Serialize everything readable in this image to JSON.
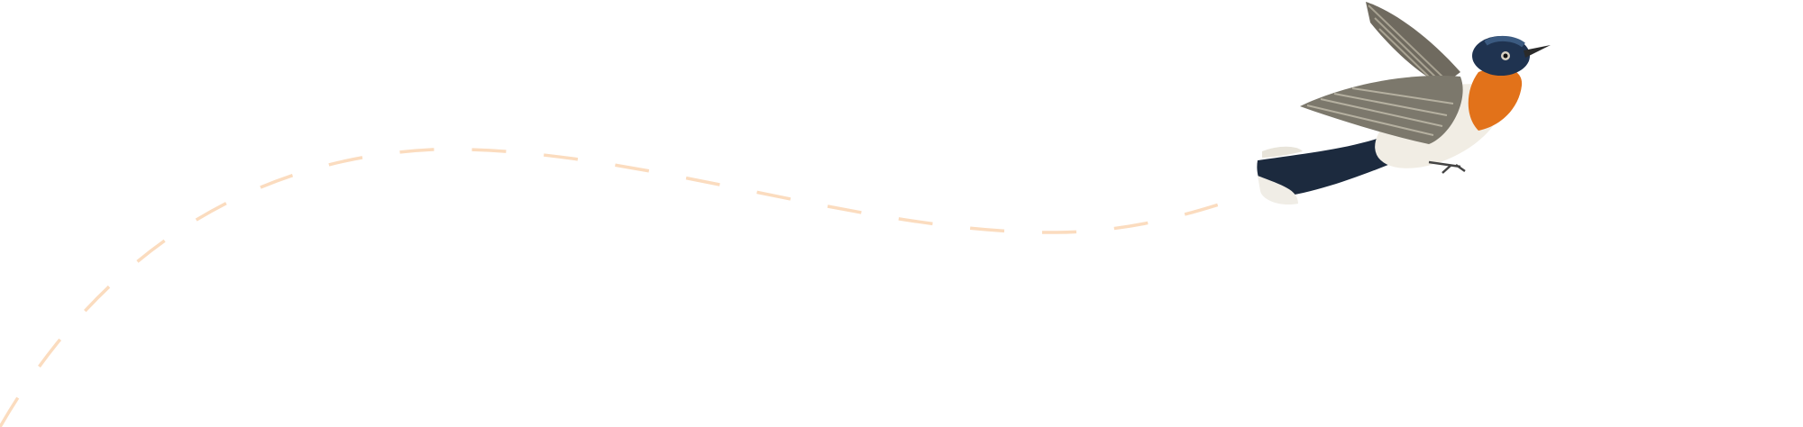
{
  "illustration": {
    "subject": "bird-flying",
    "colors": {
      "flight_path": "#fbdcbf",
      "bird_head": "#1f3350",
      "bird_throat": "#e2721a",
      "bird_belly": "#f1ede4",
      "bird_wing": "#7c786c",
      "bird_tail": "#1c2a3e"
    }
  }
}
